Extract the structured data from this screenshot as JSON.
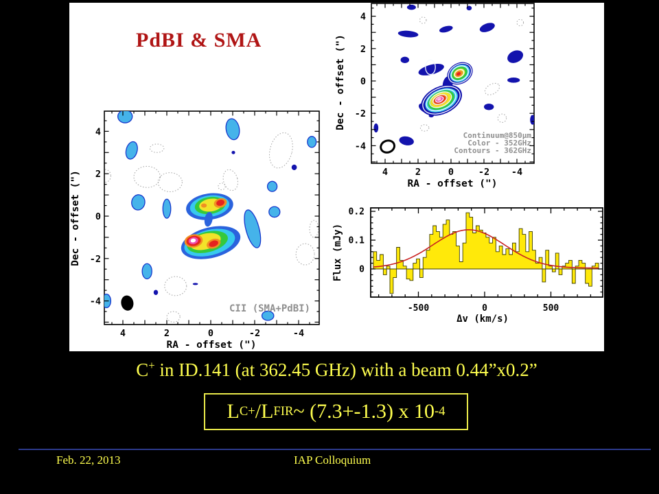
{
  "slide": {
    "title": "PdBI & SMA",
    "caption_parts": [
      {
        "t": "C"
      },
      {
        "sup": "+"
      },
      {
        "t": " in ID.141 (at 362.45 GHz) with a beam 0.44”x0.2”"
      }
    ],
    "formula_parts": [
      {
        "t": "L"
      },
      {
        "sub": "C"
      },
      {
        "sup": "+"
      },
      {
        "t": "/L"
      },
      {
        "sub": "FIR"
      },
      {
        "t": " ~ (7.3+-1.3) x 10"
      },
      {
        "sup": "-4"
      }
    ],
    "footer": {
      "date": "Feb. 22, 2013",
      "venue": "IAP Colloquium"
    }
  },
  "colors": {
    "background": "#000000",
    "panel": "#ffffff",
    "title_red": "#b01515",
    "slide_yellow": "#ffff4f",
    "formula_border": "#e8e84a",
    "footer_line": "#2c3a8c",
    "annotation_gray": "#8f8f8f"
  },
  "palette": {
    "navy": "#1313ad",
    "blue": "#2b63dd",
    "blob_fill": "#45b3ea",
    "blob_stroke": "#1838cc",
    "cyan": "#37c9ee",
    "green": "#35c93c",
    "yellow": "#f2e32a",
    "orange": "#f09023",
    "red": "#e5241f",
    "magenta": "#ef4fb0",
    "pink": "#ffc0e8",
    "white": "#ffffff",
    "dotted": "#a0a0a0",
    "hist_fill": "#ffe90a",
    "hist_stroke": "#3a3a00",
    "fit_red": "#c92020",
    "frame": "#000000"
  },
  "chart_data": [
    {
      "id": "cii_map",
      "type": "map",
      "annotation": "CII (SMA+PdBI)",
      "xlabel": "RA - offset (\")",
      "ylabel": "Dec - offset (\")",
      "x_ticks": [
        4,
        2,
        0,
        -2,
        -4
      ],
      "y_ticks": [
        4,
        2,
        0,
        -2,
        -4
      ],
      "xlim": [
        4.9,
        -5.0
      ],
      "ylim": [
        -5.1,
        4.9
      ],
      "beam": [
        3.8,
        -4.1,
        0.28,
        0.36,
        -10
      ],
      "blobs": [
        [
          3.9,
          4.7,
          0.33,
          0.3,
          0,
          "blob_fill"
        ],
        [
          3.6,
          3.1,
          0.25,
          0.42,
          15,
          "blob_fill"
        ],
        [
          -1.0,
          4.1,
          0.3,
          0.5,
          -10,
          "blob_fill"
        ],
        [
          -4.6,
          3.5,
          0.2,
          0.26,
          0,
          "blob_fill"
        ],
        [
          -3.8,
          2.3,
          0.12,
          0.13,
          0,
          "navy"
        ],
        [
          -1.03,
          3.0,
          0.08,
          0.08,
          0,
          "navy"
        ],
        [
          3.3,
          0.65,
          0.3,
          0.36,
          10,
          "blob_fill"
        ],
        [
          2.0,
          0.35,
          0.18,
          0.45,
          0,
          "blob_fill"
        ],
        [
          -2.8,
          1.4,
          0.22,
          0.24,
          0,
          "blob_fill"
        ],
        [
          -1.9,
          -0.6,
          0.3,
          0.92,
          -15,
          "blob_fill"
        ],
        [
          -2.9,
          0.2,
          0.25,
          0.25,
          0,
          "blob_fill"
        ],
        [
          2.9,
          -2.6,
          0.22,
          0.36,
          0,
          "blob_fill"
        ],
        [
          2.5,
          -3.6,
          0.1,
          0.12,
          0,
          "navy"
        ],
        [
          4.75,
          -4.0,
          0.2,
          0.32,
          0,
          "blob_fill"
        ],
        [
          -2.6,
          -4.7,
          0.27,
          0.22,
          0,
          "blob_fill"
        ],
        [
          0.7,
          -3.2,
          0.12,
          0.05,
          0,
          "navy"
        ]
      ],
      "dotted_contours": [
        [
          2.45,
          3.2,
          0.32,
          0.2,
          0
        ],
        [
          2.9,
          1.85,
          0.6,
          0.5,
          0
        ],
        [
          1.85,
          1.6,
          0.55,
          0.45,
          0
        ],
        [
          -0.9,
          1.7,
          0.32,
          0.5,
          -15
        ],
        [
          -0.5,
          1.4,
          0.16,
          0.16,
          0
        ],
        [
          -3.2,
          3.1,
          0.5,
          0.85,
          15
        ],
        [
          -4.3,
          -1.8,
          0.42,
          0.5,
          0
        ],
        [
          1.6,
          -3.3,
          0.5,
          0.45,
          0
        ],
        [
          1.7,
          -4.75,
          0.3,
          0.25,
          0
        ],
        [
          4.8,
          1.9,
          0.25,
          0.3,
          0
        ],
        [
          -4.7,
          -0.6,
          0.2,
          0.4,
          0
        ]
      ],
      "sources": [
        [
          0.05,
          0.45,
          1.08,
          0.62,
          -8,
          "blue"
        ],
        [
          0.05,
          0.47,
          0.9,
          0.5,
          -8,
          "cyan"
        ],
        [
          0.03,
          0.5,
          0.7,
          0.4,
          -8,
          "green"
        ],
        [
          0.0,
          0.52,
          0.53,
          0.3,
          -8,
          "yellow"
        ],
        [
          -0.44,
          0.62,
          0.3,
          0.22,
          -15,
          "orange"
        ],
        [
          -0.44,
          0.63,
          0.19,
          0.14,
          -15,
          "red"
        ],
        [
          0.31,
          0.5,
          0.13,
          0.1,
          0,
          "orange"
        ],
        [
          0.1,
          -0.15,
          0.18,
          0.35,
          10,
          "blue"
        ],
        [
          0.0,
          -1.25,
          1.38,
          0.72,
          -14,
          "blue"
        ],
        [
          0.05,
          -1.25,
          1.18,
          0.6,
          -14,
          "cyan"
        ],
        [
          0.15,
          -1.22,
          0.95,
          0.48,
          -14,
          "green"
        ],
        [
          0.25,
          -1.2,
          0.72,
          0.37,
          -14,
          "yellow"
        ],
        [
          0.78,
          -1.17,
          0.42,
          0.31,
          -10,
          "orange"
        ],
        [
          0.78,
          -1.17,
          0.33,
          0.24,
          -10,
          "red"
        ],
        [
          0.79,
          -1.16,
          0.22,
          0.16,
          -10,
          "magenta"
        ],
        [
          0.8,
          -1.15,
          0.12,
          0.09,
          -10,
          "white"
        ],
        [
          -0.13,
          -1.3,
          0.33,
          0.22,
          -20,
          "orange"
        ],
        [
          -0.13,
          -1.3,
          0.22,
          0.14,
          -20,
          "red"
        ]
      ],
      "white_contours": []
    },
    {
      "id": "continuum_map",
      "type": "map",
      "annotations": [
        "Continuum@850μm",
        "Color - 352GHz",
        "Contours - 362GHz"
      ],
      "xlabel": "RA - offset (\")",
      "ylabel": "Dec - offset (\")",
      "x_ticks": [
        4,
        2,
        0,
        -2,
        -4
      ],
      "y_ticks": [
        4,
        2,
        0,
        -2,
        -4
      ],
      "xlim": [
        4.8,
        -5.0
      ],
      "ylim": [
        -5.1,
        4.8
      ],
      "beam_ring": [
        3.85,
        -4.05,
        0.42,
        0.36,
        -20
      ],
      "blobs": [
        [
          2.4,
          4.55,
          0.27,
          0.16,
          0,
          "navy"
        ],
        [
          -1.1,
          4.5,
          0.16,
          0.14,
          0,
          "navy"
        ],
        [
          0.55,
          4.9,
          0.18,
          0.1,
          0,
          "navy"
        ],
        [
          -2.2,
          3.3,
          0.48,
          0.25,
          -20,
          "navy"
        ],
        [
          2.6,
          2.9,
          0.62,
          0.2,
          5,
          "navy"
        ],
        [
          0.3,
          3.2,
          0.42,
          0.18,
          -15,
          "navy"
        ],
        [
          2.8,
          1.3,
          0.26,
          0.2,
          0,
          "navy"
        ],
        [
          -3.9,
          1.5,
          0.5,
          0.36,
          -25,
          "navy"
        ],
        [
          -3.8,
          0.05,
          0.38,
          0.16,
          0,
          "navy"
        ],
        [
          -2.3,
          -1.6,
          0.3,
          0.2,
          0,
          "navy"
        ],
        [
          2.7,
          -3.7,
          0.45,
          0.27,
          10,
          "navy"
        ],
        [
          4.55,
          -2.9,
          0.14,
          0.28,
          0,
          "navy"
        ],
        [
          -4.95,
          -2.4,
          0.15,
          0.3,
          0,
          "navy"
        ]
      ],
      "dotted_contours": [
        [
          1.7,
          3.75,
          0.2,
          0.2,
          0
        ],
        [
          -4.2,
          3.6,
          0.2,
          0.2,
          0
        ],
        [
          -2.5,
          -0.5,
          0.48,
          0.3,
          -30
        ],
        [
          -3.1,
          -2.3,
          0.26,
          0.26,
          0
        ],
        [
          1.6,
          -2.9,
          0.26,
          0.2,
          0
        ]
      ],
      "sources": [
        [
          1.2,
          0.7,
          0.8,
          0.3,
          -15,
          "navy"
        ],
        [
          0.2,
          -0.2,
          0.3,
          0.5,
          10,
          "navy"
        ],
        [
          1.55,
          -1.7,
          0.45,
          0.25,
          30,
          "navy"
        ],
        [
          1.2,
          -2.15,
          0.15,
          0.1,
          0,
          "navy"
        ],
        [
          -0.54,
          0.47,
          0.82,
          0.64,
          -30,
          "navy"
        ],
        [
          -0.54,
          0.47,
          0.64,
          0.5,
          -30,
          "cyan"
        ],
        [
          -0.52,
          0.47,
          0.5,
          0.38,
          -30,
          "green"
        ],
        [
          -0.5,
          0.47,
          0.37,
          0.27,
          -30,
          "yellow"
        ],
        [
          -0.48,
          0.45,
          0.25,
          0.18,
          -30,
          "orange"
        ],
        [
          -0.46,
          0.44,
          0.14,
          0.1,
          -30,
          "red"
        ],
        [
          0.58,
          -1.19,
          1.32,
          0.85,
          -25,
          "navy"
        ],
        [
          0.58,
          -1.19,
          1.05,
          0.66,
          -25,
          "cyan"
        ],
        [
          0.6,
          -1.18,
          0.85,
          0.53,
          -25,
          "green"
        ],
        [
          0.62,
          -1.17,
          0.66,
          0.41,
          -25,
          "yellow"
        ],
        [
          0.66,
          -1.16,
          0.5,
          0.31,
          -25,
          "orange"
        ],
        [
          0.68,
          -1.15,
          0.36,
          0.22,
          -25,
          "red"
        ],
        [
          0.7,
          -1.14,
          0.24,
          0.15,
          -25,
          "magenta"
        ],
        [
          0.72,
          -1.13,
          0.13,
          0.08,
          -25,
          "pink"
        ]
      ],
      "white_contours": [
        [
          -0.54,
          0.47,
          0.74,
          0.56,
          -30
        ],
        [
          -0.53,
          0.47,
          0.55,
          0.42,
          -30
        ],
        [
          -0.5,
          0.46,
          0.3,
          0.22,
          -30
        ],
        [
          0.58,
          -1.19,
          1.2,
          0.75,
          -25
        ],
        [
          0.6,
          -1.18,
          0.95,
          0.58,
          -25
        ],
        [
          0.63,
          -1.16,
          0.7,
          0.42,
          -25
        ],
        [
          0.67,
          -1.15,
          0.45,
          0.27,
          -25
        ],
        [
          0.7,
          -1.14,
          0.25,
          0.15,
          -25
        ],
        [
          1.25,
          0.85,
          0.3,
          0.45,
          0
        ]
      ]
    },
    {
      "id": "spectrum",
      "type": "bar",
      "xlabel": "Δv (km/s)",
      "ylabel": "Flux (mJy)",
      "x_ticks": [
        {
          "v": -500,
          "label": "-500"
        },
        {
          "v": 0,
          "label": "0"
        },
        {
          "v": 500,
          "label": "500"
        }
      ],
      "y_ticks": [
        {
          "v": 0,
          "label": "0"
        },
        {
          "v": 0.1,
          "label": "0.1"
        },
        {
          "v": 0.2,
          "label": "0.2"
        }
      ],
      "xlim": [
        -860,
        890
      ],
      "ylim": [
        -0.098,
        0.212
      ],
      "bin_start": -840,
      "bin_width": 25,
      "values": [
        0.06,
        0.03,
        0.05,
        -0.02,
        0.01,
        -0.085,
        -0.03,
        0.075,
        0.03,
        0.01,
        -0.035,
        -0.04,
        0.02,
        0.035,
        -0.03,
        0.04,
        0.065,
        0.12,
        0.15,
        0.13,
        0.11,
        0.155,
        0.17,
        0.12,
        0.13,
        0.08,
        0.025,
        0.09,
        0.195,
        0.18,
        0.125,
        0.15,
        0.135,
        0.125,
        0.11,
        0.09,
        0.11,
        0.06,
        0.08,
        0.05,
        0.07,
        0.05,
        0.09,
        0.06,
        0.14,
        0.12,
        0.06,
        0.13,
        0.065,
        0.02,
        0.04,
        -0.045,
        0.065,
        0.01,
        -0.01,
        0.055,
        -0.02,
        0.01,
        0.02,
        0.03,
        -0.05,
        0.01,
        0.03,
        0.02,
        -0.05,
        -0.06,
        0.01,
        0.02
      ],
      "fit": {
        "type": "gaussian",
        "amplitude": 0.133,
        "center": -120,
        "sigma": 270,
        "baseline": 0.003
      }
    }
  ]
}
